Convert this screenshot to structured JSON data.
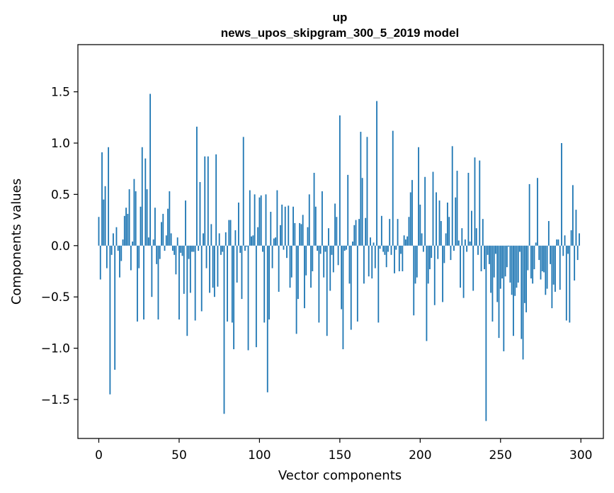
{
  "chart_data": {
    "type": "bar",
    "title": "up",
    "subtitle": "news_upos_skipgram_300_5_2019 model",
    "xlabel": "Vector components",
    "ylabel": "Components values",
    "xlim": [
      -13,
      314
    ],
    "ylim": [
      -1.88,
      1.96
    ],
    "xticks": [
      0,
      50,
      100,
      150,
      200,
      250,
      300
    ],
    "yticks": [
      -1.5,
      -1.0,
      -0.5,
      0.0,
      0.5,
      1.0,
      1.5
    ],
    "ytick_labels": [
      "−1.5",
      "−1.0",
      "−0.5",
      "0.0",
      "0.5",
      "1.0",
      "1.5"
    ],
    "grid": false,
    "bar_color": "#1f77b4",
    "x": "0..299 (index of each value)",
    "values": [
      0.28,
      -0.33,
      0.91,
      0.45,
      0.58,
      -0.22,
      0.96,
      -1.45,
      -0.09,
      0.12,
      -1.21,
      0.18,
      -0.05,
      -0.31,
      -0.15,
      0.06,
      0.29,
      0.37,
      0.31,
      0.55,
      -0.24,
      0.04,
      0.65,
      0.53,
      -0.74,
      -0.22,
      0.38,
      0.96,
      -0.72,
      0.85,
      0.55,
      0.08,
      1.48,
      -0.5,
      0.06,
      0.37,
      -0.18,
      -0.72,
      -0.13,
      0.23,
      0.31,
      -0.05,
      0.1,
      0.36,
      0.53,
      0.12,
      -0.05,
      -0.09,
      -0.28,
      0.08,
      -0.72,
      -0.07,
      -0.1,
      -0.47,
      0.44,
      -0.88,
      -0.13,
      -0.46,
      -0.06,
      -0.06,
      -0.73,
      1.16,
      -0.05,
      0.62,
      -0.64,
      0.12,
      0.87,
      -0.22,
      0.87,
      -0.46,
      0.21,
      -0.41,
      -0.5,
      0.89,
      -0.4,
      0.12,
      -0.09,
      -0.06,
      -1.64,
      0.13,
      -0.74,
      0.25,
      0.25,
      -0.75,
      -1.01,
      0.15,
      -0.36,
      0.42,
      -0.07,
      -0.52,
      1.06,
      -0.05,
      -0.01,
      -1.02,
      0.54,
      0.09,
      0.1,
      0.5,
      -0.99,
      0.18,
      0.47,
      0.49,
      -0.06,
      -0.75,
      0.5,
      -1.43,
      -0.72,
      0.33,
      -0.22,
      0.07,
      0.08,
      0.54,
      -0.45,
      0.2,
      0.4,
      -0.04,
      0.38,
      -0.12,
      0.39,
      -0.41,
      -0.31,
      0.38,
      0.22,
      -0.86,
      -0.52,
      0.22,
      0.21,
      0.3,
      -0.61,
      -0.29,
      0.18,
      0.5,
      -0.41,
      -0.25,
      0.71,
      0.38,
      -0.05,
      -0.75,
      -0.08,
      0.53,
      -0.31,
      -0.06,
      -0.88,
      0.17,
      -0.44,
      -0.09,
      -0.26,
      0.41,
      0.28,
      -0.19,
      1.27,
      -0.62,
      -1.01,
      -0.05,
      -0.04,
      0.69,
      -0.37,
      -0.82,
      0.04,
      0.2,
      0.25,
      -0.74,
      0.26,
      1.11,
      0.66,
      -0.37,
      0.27,
      1.06,
      -0.3,
      0.08,
      -0.32,
      0.03,
      -0.22,
      1.41,
      -0.75,
      -0.03,
      0.29,
      -0.06,
      -0.09,
      -0.21,
      -0.06,
      0.26,
      -0.09,
      1.12,
      -0.27,
      -0.04,
      0.26,
      -0.25,
      -0.08,
      -0.25,
      0.1,
      0.06,
      0.09,
      0.28,
      0.52,
      0.64,
      -0.68,
      -0.37,
      -0.31,
      0.96,
      0.4,
      0.12,
      -0.06,
      0.67,
      -0.93,
      -0.37,
      -0.23,
      -0.12,
      0.72,
      -0.58,
      0.52,
      -0.13,
      0.44,
      0.24,
      -0.55,
      -0.17,
      0.12,
      0.42,
      0.28,
      -0.14,
      0.97,
      -0.05,
      0.47,
      0.73,
      0.05,
      -0.41,
      0.17,
      -0.51,
      0.06,
      -0.06,
      0.71,
      0.04,
      0.34,
      -0.44,
      0.86,
      0.17,
      -0.09,
      0.83,
      -0.25,
      0.26,
      -0.23,
      -1.71,
      -0.09,
      -0.18,
      -0.46,
      -0.74,
      -0.31,
      -0.08,
      -0.55,
      -0.9,
      -0.42,
      -0.32,
      -1.03,
      -0.3,
      -0.21,
      -0.01,
      -0.36,
      -0.48,
      -0.88,
      -0.49,
      -0.41,
      -0.36,
      -0.06,
      -0.91,
      -1.11,
      -0.56,
      -0.65,
      -0.24,
      0.6,
      -0.32,
      -0.37,
      -0.23,
      0.03,
      0.66,
      -0.14,
      -0.33,
      -0.25,
      -0.26,
      -0.48,
      -0.42,
      0.24,
      -0.18,
      -0.61,
      -0.38,
      -0.45,
      0.06,
      0.06,
      -0.43,
      1.0,
      -0.1,
      0.1,
      -0.73,
      -0.08,
      -0.75,
      0.15,
      0.59,
      -0.34,
      0.35,
      -0.14,
      0.12
    ]
  }
}
